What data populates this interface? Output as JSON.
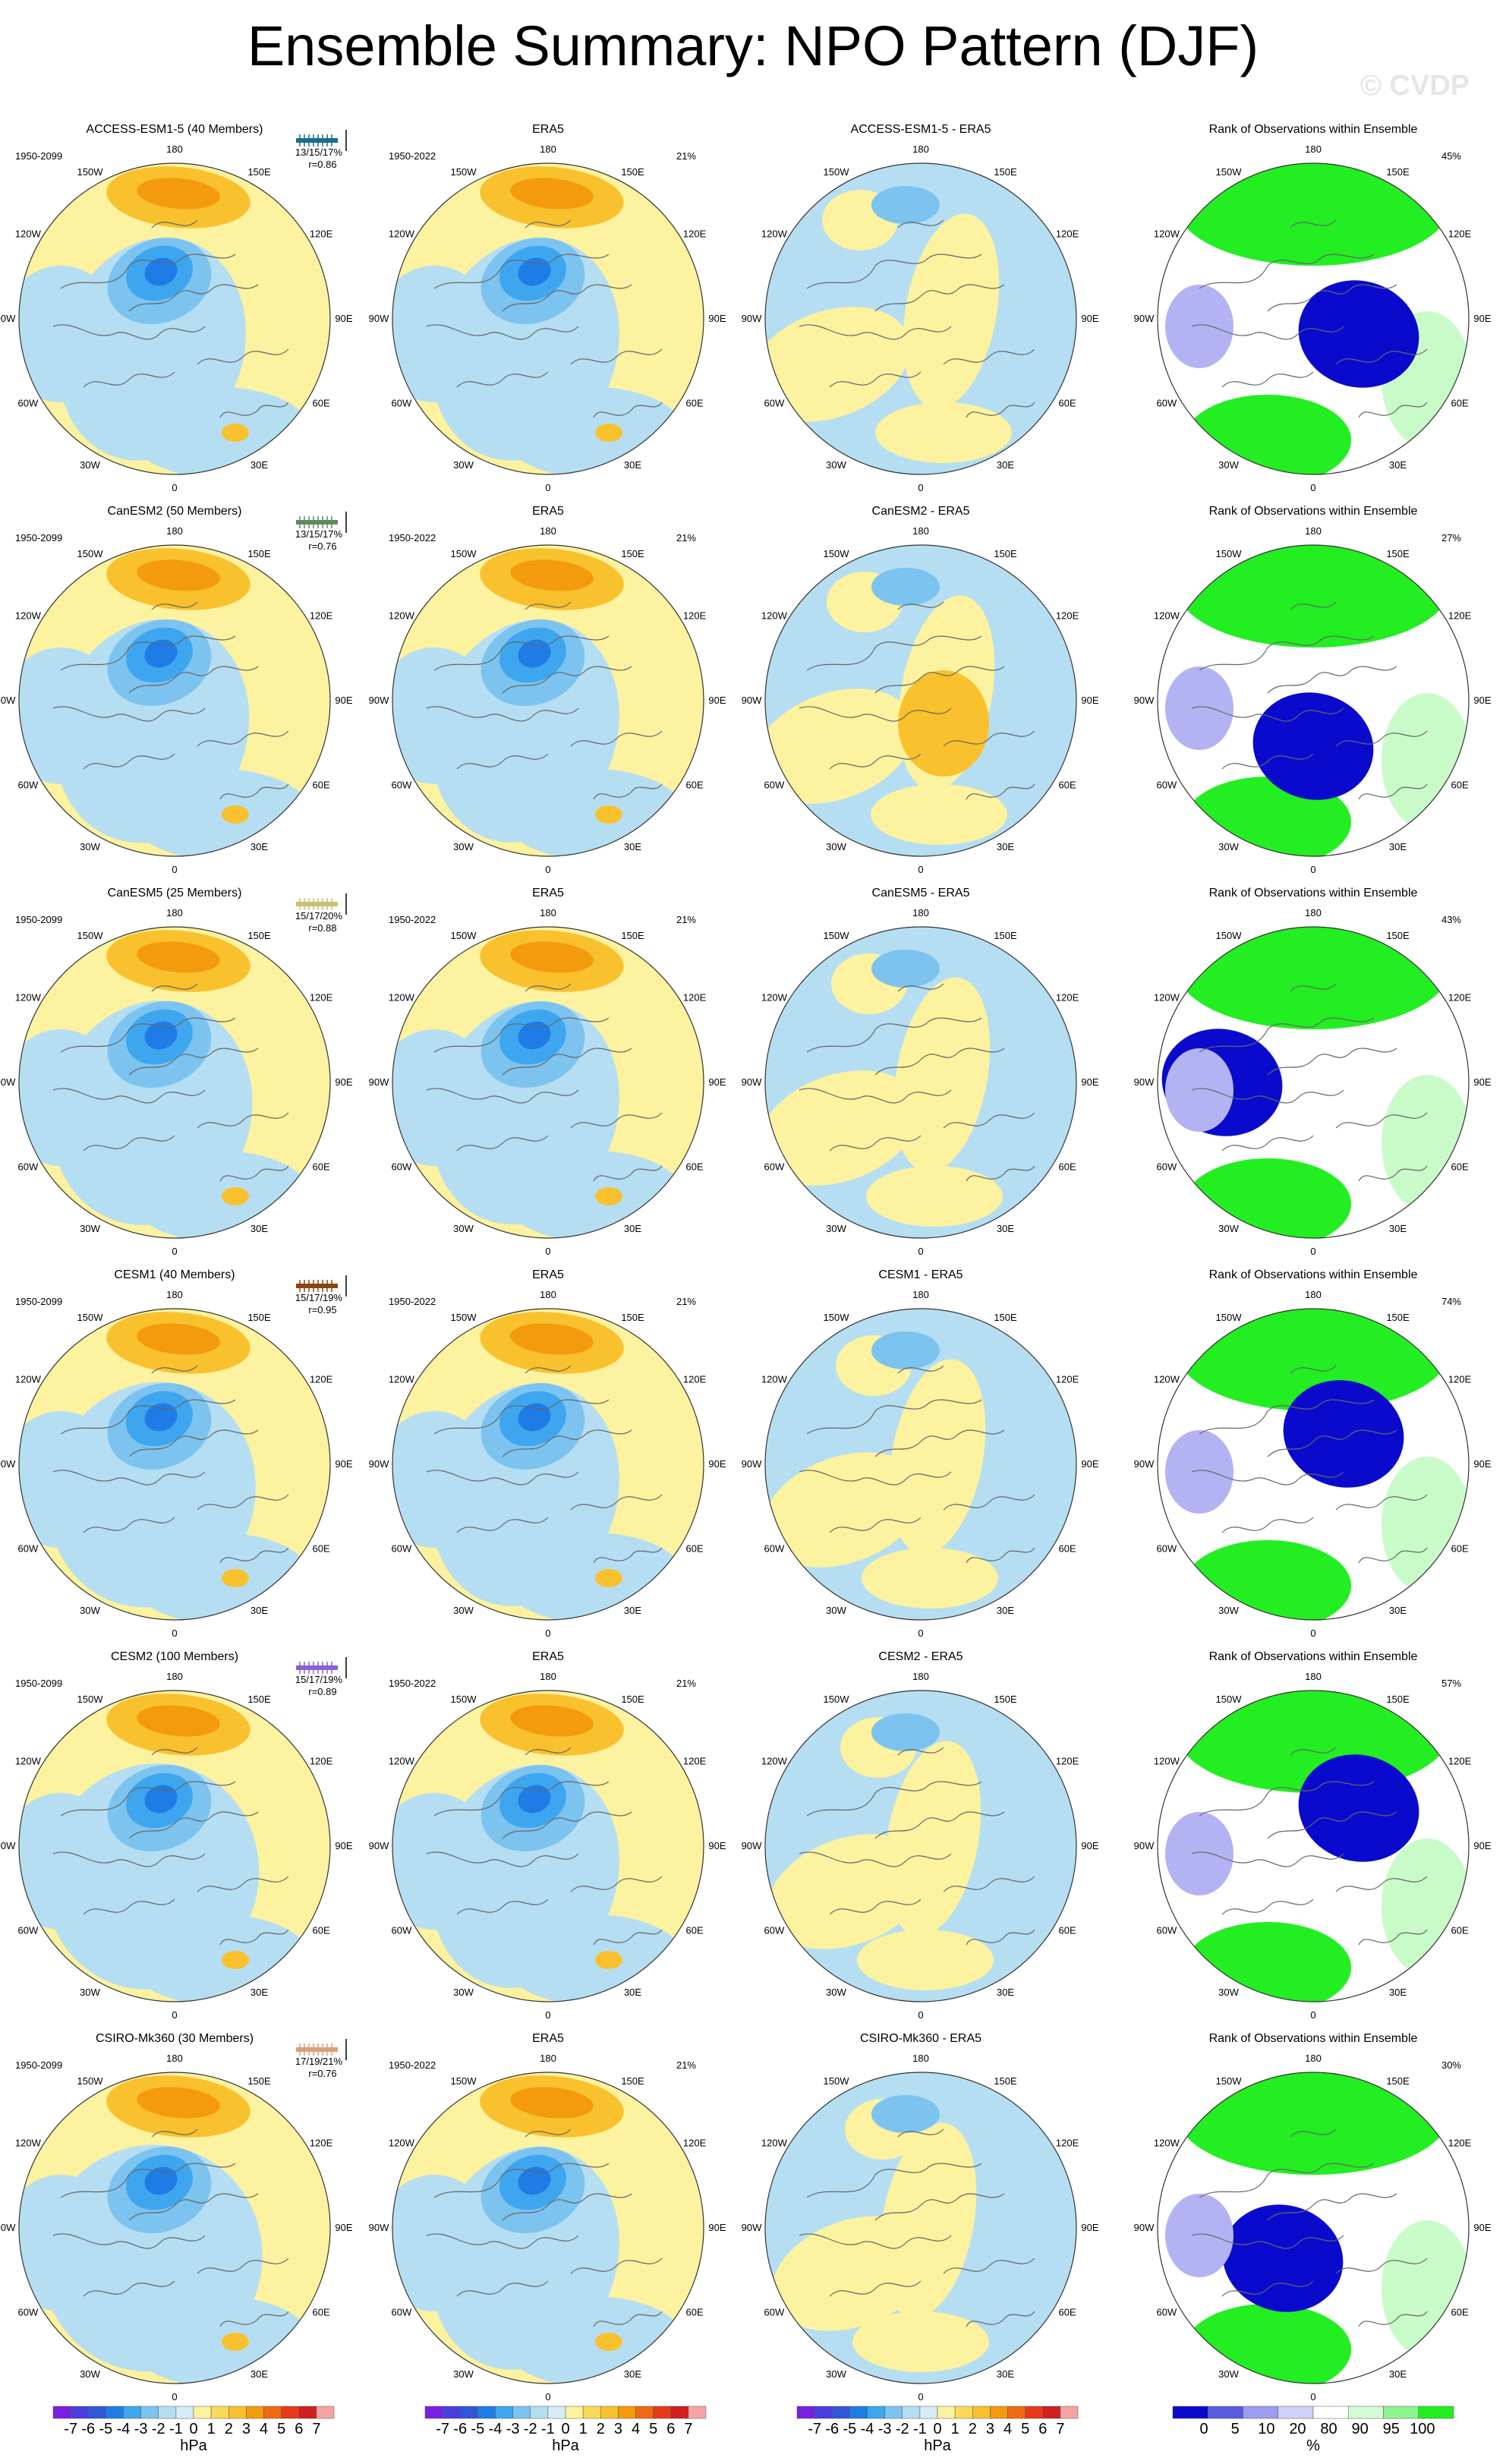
{
  "title": "Ensemble Summary: NPO Pattern (DJF)",
  "watermark": "© CVDP",
  "longitude_labels": [
    "180",
    "150E",
    "120E",
    "90E",
    "60E",
    "30E",
    "0",
    "30W",
    "60W",
    "90W",
    "120W",
    "150W"
  ],
  "shading_colors": {
    "pos1": "#fcf29f",
    "pos2": "#f9c12d",
    "pos3": "#f49a0d",
    "neg1": "#b5def2",
    "neg2": "#7cc3f0",
    "neg3": "#3ea6ef",
    "neg4": "#1f7ce6",
    "neg5": "#2f56d9",
    "land": "#666666"
  },
  "rank_colors": {
    "low": "#0a0acd",
    "midlow": "#b3b3f3",
    "mid": "#ffffff",
    "midhigh": "#c9fbc9",
    "high": "#22ee22"
  },
  "rows": [
    {
      "model_label": "ACCESS-ESM1-5 (40 Members)",
      "model_color": "#1a6b8e",
      "model_years": "1950-2099",
      "stats": "13/15/17%",
      "corr": "r=0.86",
      "obs_title": "ERA5",
      "obs_years": "1950-2022",
      "obs_pct": "21%",
      "diff_title": "ACCESS-ESM1-5 - ERA5",
      "rank_title": "Rank of Observations within Ensemble",
      "rank_pct": "45%"
    },
    {
      "model_label": "CanESM2 (50 Members)",
      "model_color": "#5e8a5e",
      "model_years": "1950-2099",
      "stats": "13/15/17%",
      "corr": "r=0.76",
      "obs_title": "ERA5",
      "obs_years": "1950-2022",
      "obs_pct": "21%",
      "diff_title": "CanESM2 - ERA5",
      "rank_title": "Rank of Observations within Ensemble",
      "rank_pct": "27%"
    },
    {
      "model_label": "CanESM5 (25 Members)",
      "model_color": "#c9c075",
      "model_years": "1950-2099",
      "stats": "15/17/20%",
      "corr": "r=0.88",
      "obs_title": "ERA5",
      "obs_years": "1950-2022",
      "obs_pct": "21%",
      "diff_title": "CanESM5 - ERA5",
      "rank_title": "Rank of Observations within Ensemble",
      "rank_pct": "43%"
    },
    {
      "model_label": "CESM1 (40 Members)",
      "model_color": "#8b4513",
      "model_years": "1950-2099",
      "stats": "15/17/19%",
      "corr": "r=0.95",
      "obs_title": "ERA5",
      "obs_years": "1950-2022",
      "obs_pct": "21%",
      "diff_title": "CESM1 - ERA5",
      "rank_title": "Rank of Observations within Ensemble",
      "rank_pct": "74%"
    },
    {
      "model_label": "CESM2 (100 Members)",
      "model_color": "#8a5fd6",
      "model_years": "1950-2099",
      "stats": "15/17/19%",
      "corr": "r=0.89",
      "obs_title": "ERA5",
      "obs_years": "1950-2022",
      "obs_pct": "21%",
      "diff_title": "CESM2 - ERA5",
      "rank_title": "Rank of Observations within Ensemble",
      "rank_pct": "57%"
    },
    {
      "model_label": "CSIRO-Mk360 (30 Members)",
      "model_color": "#d9a07a",
      "model_years": "1950-2099",
      "stats": "17/19/21%",
      "corr": "r=0.76",
      "obs_title": "ERA5",
      "obs_years": "1950-2022",
      "obs_pct": "21%",
      "diff_title": "CSIRO-Mk360 - ERA5",
      "rank_title": "Rank of Observations within Ensemble",
      "rank_pct": "30%"
    }
  ],
  "colorbar_hpa": {
    "labels": [
      "-7",
      "-6",
      "-5",
      "-4",
      "-3",
      "-2",
      "-1",
      "0",
      "1",
      "2",
      "3",
      "4",
      "5",
      "6",
      "7"
    ],
    "colors": [
      "#7b1fe0",
      "#4b3fe0",
      "#2f56d9",
      "#1f7ce6",
      "#3ea6ef",
      "#7cc3f0",
      "#b5def2",
      "#d7ecf7",
      "#fcf29f",
      "#f9d85a",
      "#f9c12d",
      "#f49a0d",
      "#ee6a12",
      "#e63a1a",
      "#cf1f1f",
      "#f6a3a3"
    ],
    "unit": "hPa"
  },
  "colorbar_rank": {
    "labels": [
      "0",
      "5",
      "10",
      "20",
      "80",
      "90",
      "95",
      "100"
    ],
    "colors": [
      "#0a0acd",
      "#5a5ae0",
      "#9c9cf0",
      "#d0d0f8",
      "#ffffff",
      "#d4fbd4",
      "#8ef58e",
      "#22ee22"
    ],
    "unit": "%"
  }
}
